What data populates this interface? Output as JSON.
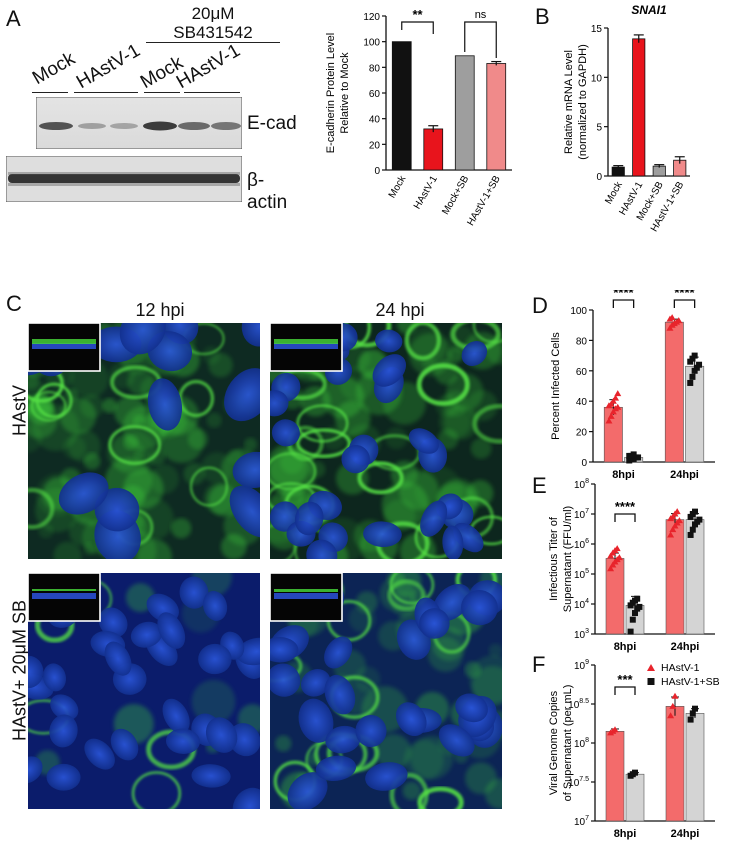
{
  "panel_labels": [
    "A",
    "B",
    "C",
    "D",
    "E",
    "F"
  ],
  "colors": {
    "mock": "#111111",
    "hastv": "#e8141c",
    "mock_sb": "#9e9e9e",
    "hastv_sb": "#f08a8a",
    "d_red": "#f36b6b",
    "d_red_point": "#e8242c",
    "d_grey": "#d4d4d4"
  },
  "blot": {
    "treatment": "20μM\nSB431542",
    "treatment_line1": "20μM",
    "treatment_line2": "SB431542",
    "lanes": [
      "Mock",
      "HAstV-1",
      "Mock",
      "HAstV-1"
    ],
    "bands": [
      "E-cad",
      "β-actin"
    ]
  },
  "micro": {
    "columns": [
      "12 hpi",
      "24 hpi"
    ],
    "rows": [
      "HAstV",
      "HAstV+ 20μM SB"
    ]
  },
  "chart_data": [
    {
      "panel": "A",
      "type": "bar",
      "categories": [
        "Mock",
        "HAstV-1",
        "Mock+SB",
        "HAstV-1+SB"
      ],
      "values": [
        100,
        32,
        89,
        83
      ],
      "errors": [
        0,
        2.5,
        0,
        1.5
      ],
      "ylabel": "E-cadherin Protein Level\nRelative to Mock",
      "ylabel_lines": [
        "E-cadherin Protein Level",
        "Relative to Mock"
      ],
      "ylim": [
        0,
        120
      ],
      "yticks": [
        "0",
        "20",
        "40",
        "60",
        "80",
        "100",
        "120"
      ],
      "annotations": [
        "**",
        "ns"
      ]
    },
    {
      "panel": "B",
      "type": "bar",
      "title": "SNAI1",
      "categories": [
        "Mock",
        "HAstV-1",
        "Mock+SB",
        "HAstV-1+SB"
      ],
      "values": [
        0.9,
        13.9,
        1.0,
        1.6
      ],
      "errors": [
        0.15,
        0.4,
        0.15,
        0.35
      ],
      "ylabel": "Relative mRNA Level\n(normalized to GAPDH)",
      "ylabel_lines": [
        "Relative mRNA Level",
        "(normalized to GAPDH)"
      ],
      "ylim": [
        0,
        15
      ],
      "yticks": [
        "0",
        "5",
        "10",
        "15"
      ]
    },
    {
      "panel": "D",
      "type": "bar",
      "categories": [
        "8hpi",
        "24hpi"
      ],
      "series": [
        {
          "name": "HAstV-1",
          "values": [
            36,
            92
          ],
          "errors": [
            5,
            2
          ],
          "points": [
            [
              27,
              30,
              33,
              35,
              36,
              37,
              38,
              40,
              42,
              45
            ],
            [
              88,
              90,
              91,
              92,
              93,
              94,
              95
            ]
          ]
        },
        {
          "name": "HAstV-1+SB",
          "values": [
            3,
            63
          ],
          "errors": [
            1.5,
            6
          ],
          "points": [
            [
              1,
              2,
              2,
              3,
              3,
              4,
              4,
              5
            ],
            [
              52,
              56,
              60,
              62,
              64,
              66,
              68,
              70
            ]
          ]
        }
      ],
      "ylabel": "Percent Infected Cells",
      "ylim": [
        0,
        100
      ],
      "yticks": [
        "0",
        "20",
        "40",
        "60",
        "80",
        "100"
      ],
      "annotations": [
        "****",
        "****"
      ]
    },
    {
      "panel": "E",
      "type": "bar",
      "y_scale": "log10",
      "categories": [
        "8hpi",
        "24hpi"
      ],
      "series": [
        {
          "name": "HAstV-1",
          "values": [
            330000,
            6500000
          ],
          "errors": [
            0.18,
            0.2
          ],
          "points": [
            [
              150000,
              200000,
              250000,
              300000,
              350000,
              400000,
              500000,
              600000,
              700000
            ],
            [
              2000000,
              3000000,
              4000000,
              5000000,
              6000000,
              7000000,
              8000000,
              10000000,
              12000000
            ]
          ]
        },
        {
          "name": "HAstV-1+SB",
          "values": [
            9000,
            6500000
          ],
          "errors": [
            0.3,
            0.2
          ],
          "points": [
            [
              1200,
              3000,
              5000,
              7000,
              8000,
              9000,
              11000,
              13000,
              15000
            ],
            [
              2000000,
              3000000,
              4500000,
              5500000,
              6500000,
              8000000,
              10000000,
              12000000
            ]
          ]
        }
      ],
      "ylabel": "Infectious Titer of\nSupernatant (FFU/ml)",
      "ylabel_lines": [
        "Infectious Titer of",
        "Supernatant (FFU/ml)"
      ],
      "ylim": [
        1000,
        100000000
      ],
      "yticks": [
        {
          "base": "10",
          "exp": "3"
        },
        {
          "base": "10",
          "exp": "4"
        },
        {
          "base": "10",
          "exp": "5"
        },
        {
          "base": "10",
          "exp": "6"
        },
        {
          "base": "10",
          "exp": "7"
        },
        {
          "base": "10",
          "exp": "8"
        }
      ],
      "annotations": [
        "****"
      ]
    },
    {
      "panel": "F",
      "type": "bar",
      "y_scale": "log10",
      "categories": [
        "8hpi",
        "24hpi"
      ],
      "series": [
        {
          "name": "HAstV-1",
          "marker": "triangle",
          "values": [
            8.15,
            8.47
          ],
          "errors": [
            0.03,
            0.12
          ],
          "points": [
            [
              8.13,
              8.15,
              8.17
            ],
            [
              8.35,
              8.47,
              8.6
            ]
          ]
        },
        {
          "name": "HAstV-1+SB",
          "marker": "square",
          "values": [
            7.6,
            8.38
          ],
          "errors": [
            0.02,
            0.06
          ],
          "points": [
            [
              7.58,
              7.6,
              7.62
            ],
            [
              8.3,
              8.38,
              8.44
            ]
          ]
        }
      ],
      "ylabel": "Viral Genome Copies\nof Supernatant (per mL)",
      "ylabel_lines": [
        "Viral Genome Copies",
        "of Supernatant (per mL)"
      ],
      "ylim": [
        7,
        9
      ],
      "yticks": [
        {
          "base": "10",
          "exp": "7"
        },
        {
          "base": "10",
          "exp": "7.5"
        },
        {
          "base": "10",
          "exp": "8"
        },
        {
          "base": "10",
          "exp": "8.5"
        },
        {
          "base": "10",
          "exp": "9"
        }
      ],
      "legend": [
        "HAstV-1",
        "HAstV-1+SB"
      ],
      "legend_position": "top-right",
      "annotations": [
        "***"
      ]
    }
  ]
}
